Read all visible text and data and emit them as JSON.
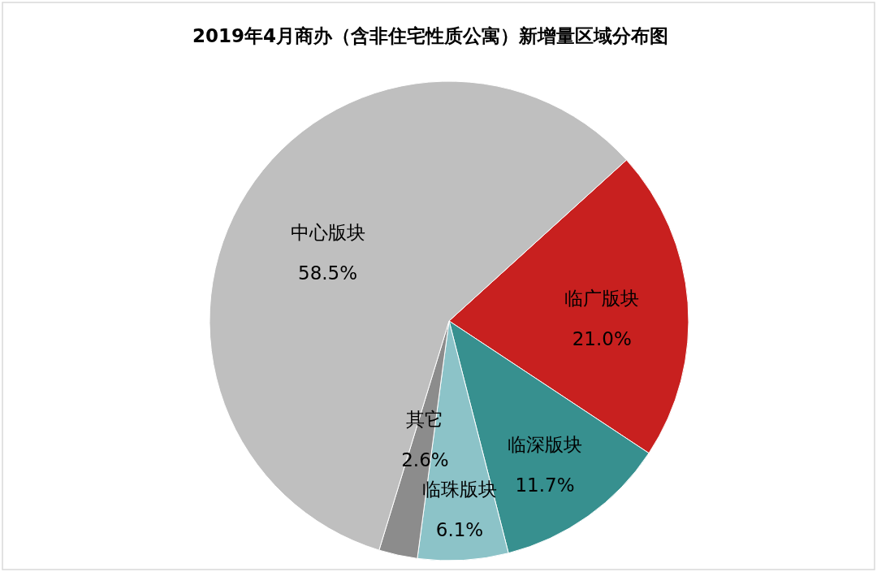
{
  "chart_data": {
    "type": "pie",
    "title": "2019年4月商办（含非住宅性质公寓）新增量区域分布图",
    "categories": [
      "临广版块",
      "临深版块",
      "临珠版块",
      "其它",
      "中心版块"
    ],
    "values": [
      21.0,
      11.7,
      6.1,
      2.6,
      58.5
    ],
    "colors": [
      "#c8201f",
      "#37908f",
      "#8cc3c8",
      "#8c8c8c",
      "#bfbfbf"
    ],
    "value_labels": [
      "21.0%",
      "11.7%",
      "6.1%",
      "2.6%",
      "58.5%"
    ],
    "legend": false
  }
}
